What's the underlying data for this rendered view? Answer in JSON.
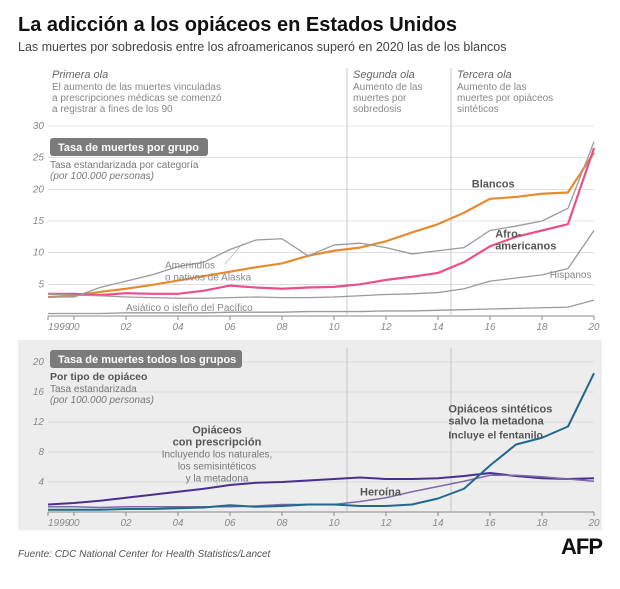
{
  "title": "La adicción a los opiáceos en Estados Unidos",
  "subtitle": "Las muertes por sobredosis entre los afroamericanos superó en 2020 las de los blancos",
  "source": "Fuente: CDC National Center for Health Statistics/Lancet",
  "brand": "AFP",
  "colors": {
    "bg": "#ffffff",
    "bg2": "#ededed",
    "grid": "#cccccc",
    "axis": "#999999",
    "txt": "#555555",
    "pill": "#7b7b7b",
    "blancos": "#e78b2e",
    "afro": "#e94f8a",
    "amer": "#9a9a9a",
    "hisp": "#9a9a9a",
    "asia": "#9a9a9a",
    "rx": "#4b2f8f",
    "heroin": "#7d6aa8",
    "synth": "#1f6a8c"
  },
  "waves": [
    {
      "hdr": "Primera ola",
      "txt": "El aumento de las muertes vinculadas a prescripciones médicas se comenzó a registrar a fines de los 90",
      "x": 0
    },
    {
      "hdr": "Segunda ola",
      "txt": "Aumento de las muertes por sobredosis",
      "x": 11.5
    },
    {
      "hdr": "Tercera ola",
      "txt": "Aumento de las muertes por opiáceos sintéticos",
      "x": 15.5
    }
  ],
  "chart1": {
    "pill": "Tasa de muertes por grupo",
    "meta1": "Tasa estandarizada por categoría",
    "meta2": "(por 100.000 personas)",
    "ylim": [
      0,
      30
    ],
    "yticks": [
      5,
      10,
      15,
      20,
      25,
      30
    ],
    "xlabels": [
      "1999",
      "00",
      "02",
      "04",
      "06",
      "08",
      "10",
      "12",
      "14",
      "16",
      "18",
      "20"
    ],
    "series": {
      "blancos": {
        "label": "Blancos",
        "color": "#e78b2e",
        "w": 2.2,
        "v": [
          3.0,
          3.2,
          3.8,
          4.3,
          4.9,
          5.6,
          6.3,
          7.0,
          7.7,
          8.3,
          9.5,
          10.3,
          10.8,
          11.8,
          13.2,
          14.5,
          16.3,
          18.5,
          18.8,
          19.3,
          19.5,
          25.8
        ]
      },
      "afro": {
        "label": "Afro-\\namericanos",
        "color": "#e94f8a",
        "w": 2.2,
        "v": [
          3.5,
          3.5,
          3.3,
          3.6,
          3.5,
          3.5,
          4.0,
          4.8,
          4.5,
          4.3,
          4.5,
          4.6,
          5.0,
          5.7,
          6.2,
          6.8,
          8.5,
          11.0,
          12.5,
          13.5,
          14.5,
          26.5
        ]
      },
      "amer": {
        "label": "Amerindios\\no nativos de Alaska",
        "color": "#9a9a9a",
        "w": 1.3,
        "v": [
          3.0,
          3.0,
          4.5,
          5.5,
          6.5,
          7.8,
          8.5,
          10.5,
          12.0,
          12.2,
          9.5,
          11.2,
          11.5,
          10.8,
          9.8,
          10.3,
          10.8,
          13.5,
          14.2,
          15.0,
          17.0,
          27.5
        ]
      },
      "hisp": {
        "label": "Hispanos",
        "color": "#9a9a9a",
        "w": 1.3,
        "v": [
          3.5,
          3.3,
          3.2,
          3.0,
          2.9,
          2.8,
          2.8,
          2.9,
          3.0,
          2.9,
          2.9,
          3.0,
          3.2,
          3.4,
          3.5,
          3.7,
          4.3,
          5.5,
          6.0,
          6.5,
          7.5,
          13.5
        ]
      },
      "asia": {
        "label": "Asiático o isleño del Pacífico",
        "color": "#9a9a9a",
        "w": 1.3,
        "v": [
          0.4,
          0.4,
          0.4,
          0.5,
          0.5,
          0.5,
          0.5,
          0.6,
          0.6,
          0.6,
          0.7,
          0.7,
          0.7,
          0.8,
          0.8,
          0.9,
          1.0,
          1.1,
          1.2,
          1.3,
          1.4,
          2.5
        ]
      }
    }
  },
  "chart2": {
    "pill": "Tasa de muertes todos los grupos",
    "meta0": "Por tipo de opiáceo",
    "meta1": "Tasa estandarizada",
    "meta2": "(por 100.000 personas)",
    "ylim": [
      0,
      20
    ],
    "yticks": [
      4,
      8,
      12,
      16,
      20
    ],
    "xlabels": [
      "1999",
      "00",
      "02",
      "04",
      "06",
      "08",
      "10",
      "12",
      "14",
      "16",
      "18",
      "20"
    ],
    "series": {
      "rx": {
        "label": "Opiáceos\\ncon prescripción",
        "sub": "Incluyendo los naturales,\\nlos semisintéticos\\ny la metadona",
        "color": "#4b2f8f",
        "w": 2,
        "v": [
          1.0,
          1.2,
          1.5,
          1.9,
          2.3,
          2.7,
          3.1,
          3.6,
          3.9,
          4.0,
          4.2,
          4.4,
          4.6,
          4.4,
          4.4,
          4.5,
          4.8,
          5.2,
          4.8,
          4.5,
          4.4,
          4.5
        ]
      },
      "heroin": {
        "label": "Heroína",
        "color": "#7d6aa8",
        "w": 1.5,
        "v": [
          0.7,
          0.7,
          0.6,
          0.7,
          0.7,
          0.7,
          0.7,
          0.7,
          0.8,
          1.0,
          1.0,
          1.0,
          1.4,
          1.9,
          2.7,
          3.4,
          4.1,
          4.9,
          4.9,
          4.7,
          4.4,
          4.1
        ]
      },
      "synth": {
        "label": "Opiáceos sintéticos\\nsalvo la metadona",
        "sub": "Incluye el fentanilo",
        "color": "#1f6a8c",
        "w": 2,
        "v": [
          0.3,
          0.3,
          0.3,
          0.4,
          0.4,
          0.5,
          0.6,
          0.9,
          0.7,
          0.8,
          1.0,
          1.0,
          0.8,
          0.8,
          1.0,
          1.8,
          3.1,
          6.2,
          9.0,
          9.9,
          11.4,
          18.5
        ]
      }
    }
  }
}
